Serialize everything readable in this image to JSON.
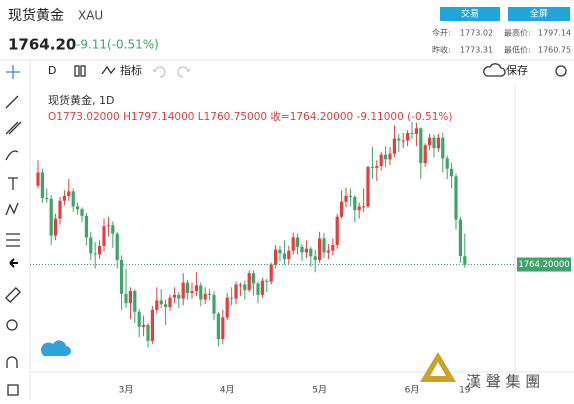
{
  "header": {
    "name": "现货黄金",
    "symbol": "XAU",
    "price": "1764.20",
    "change": "-9.11(-0.51%)",
    "buttons": [
      "交易",
      "全屏"
    ],
    "stats": [
      {
        "label": "今开:",
        "value": "1773.02"
      },
      {
        "label": "最高价:",
        "value": "1797.14"
      },
      {
        "label": "昨收:",
        "value": "1773.31"
      },
      {
        "label": "最低价:",
        "value": "1760.75"
      }
    ]
  },
  "toolbar": {
    "interval": "D",
    "indicators": "指标",
    "save": "保存"
  },
  "chart_data": {
    "type": "candlestick",
    "legend_title": "现货黄金, 1D",
    "legend_values": [
      "O1773.02000",
      "H1797.14000",
      "L1760.75000",
      "收=1764.20000",
      "-9.11000",
      "(-0.51%)"
    ],
    "up_color": "#e0403f",
    "down_color": "#3fa468",
    "ylim": [
      1650,
      1955
    ],
    "last_price": {
      "value": 1764.2,
      "label": "1764.20000"
    },
    "categories": [
      null,
      null,
      null,
      null,
      null,
      null,
      null,
      null,
      null,
      null,
      null,
      null,
      null,
      null,
      null,
      null,
      null,
      null,
      null,
      null,
      "3月",
      null,
      null,
      null,
      null,
      null,
      null,
      null,
      null,
      null,
      null,
      null,
      null,
      null,
      null,
      null,
      null,
      null,
      null,
      null,
      null,
      null,
      null,
      "4月",
      null,
      null,
      null,
      null,
      null,
      null,
      null,
      null,
      null,
      null,
      null,
      null,
      null,
      null,
      null,
      null,
      null,
      null,
      null,
      null,
      "5月",
      null,
      null,
      null,
      null,
      null,
      null,
      null,
      null,
      null,
      null,
      null,
      null,
      null,
      null,
      null,
      null,
      null,
      null,
      null,
      null,
      "6月",
      null,
      null,
      null,
      null,
      null,
      null,
      null,
      null,
      null,
      null,
      null,
      "19"
    ],
    "ohlc": [
      [
        1848,
        1875,
        1845,
        1862
      ],
      [
        1862,
        1866,
        1830,
        1835
      ],
      [
        1835,
        1845,
        1830,
        1834
      ],
      [
        1834,
        1838,
        1785,
        1795
      ],
      [
        1795,
        1818,
        1790,
        1813
      ],
      [
        1813,
        1836,
        1807,
        1832
      ],
      [
        1832,
        1843,
        1827,
        1837
      ],
      [
        1837,
        1855,
        1832,
        1842
      ],
      [
        1842,
        1845,
        1820,
        1826
      ],
      [
        1826,
        1830,
        1817,
        1823
      ],
      [
        1823,
        1825,
        1809,
        1816
      ],
      [
        1816,
        1819,
        1785,
        1793
      ],
      [
        1793,
        1799,
        1769,
        1776
      ],
      [
        1776,
        1788,
        1760,
        1775
      ],
      [
        1775,
        1790,
        1770,
        1784
      ],
      [
        1784,
        1813,
        1778,
        1805
      ],
      [
        1805,
        1815,
        1794,
        1806
      ],
      [
        1806,
        1810,
        1782,
        1797
      ],
      [
        1797,
        1799,
        1760,
        1769
      ],
      [
        1769,
        1774,
        1716,
        1733
      ],
      [
        1733,
        1760,
        1718,
        1723
      ],
      [
        1723,
        1740,
        1706,
        1736
      ],
      [
        1736,
        1738,
        1702,
        1714
      ],
      [
        1714,
        1717,
        1687,
        1698
      ],
      [
        1698,
        1710,
        1688,
        1700
      ],
      [
        1700,
        1702,
        1676,
        1683
      ],
      [
        1683,
        1720,
        1680,
        1716
      ],
      [
        1716,
        1740,
        1712,
        1726
      ],
      [
        1726,
        1738,
        1718,
        1722
      ],
      [
        1722,
        1727,
        1700,
        1719
      ],
      [
        1719,
        1732,
        1715,
        1729
      ],
      [
        1729,
        1740,
        1723,
        1732
      ],
      [
        1732,
        1735,
        1718,
        1728
      ],
      [
        1728,
        1755,
        1721,
        1745
      ],
      [
        1745,
        1748,
        1727,
        1734
      ],
      [
        1734,
        1745,
        1728,
        1736
      ],
      [
        1736,
        1756,
        1731,
        1742
      ],
      [
        1742,
        1745,
        1720,
        1727
      ],
      [
        1727,
        1740,
        1722,
        1733
      ],
      [
        1733,
        1738,
        1726,
        1732
      ],
      [
        1732,
        1736,
        1705,
        1712
      ],
      [
        1712,
        1714,
        1677,
        1685
      ],
      [
        1685,
        1716,
        1680,
        1708
      ],
      [
        1708,
        1734,
        1705,
        1729
      ],
      [
        1729,
        1740,
        1721,
        1728
      ],
      [
        1728,
        1746,
        1722,
        1743
      ],
      [
        1743,
        1745,
        1731,
        1743
      ],
      [
        1743,
        1747,
        1727,
        1737
      ],
      [
        1737,
        1758,
        1735,
        1755
      ],
      [
        1755,
        1758,
        1731,
        1744
      ],
      [
        1744,
        1746,
        1723,
        1732
      ],
      [
        1732,
        1750,
        1729,
        1747
      ],
      [
        1747,
        1749,
        1735,
        1746
      ],
      [
        1746,
        1766,
        1743,
        1764
      ],
      [
        1764,
        1785,
        1760,
        1780
      ],
      [
        1780,
        1784,
        1768,
        1776
      ],
      [
        1776,
        1790,
        1764,
        1770
      ],
      [
        1770,
        1784,
        1764,
        1779
      ],
      [
        1779,
        1798,
        1775,
        1793
      ],
      [
        1793,
        1797,
        1775,
        1783
      ],
      [
        1783,
        1786,
        1768,
        1777
      ],
      [
        1777,
        1790,
        1771,
        1781
      ],
      [
        1781,
        1783,
        1762,
        1773
      ],
      [
        1773,
        1780,
        1756,
        1769
      ],
      [
        1769,
        1799,
        1766,
        1792
      ],
      [
        1792,
        1798,
        1771,
        1777
      ],
      [
        1777,
        1786,
        1770,
        1779
      ],
      [
        1779,
        1792,
        1774,
        1785
      ],
      [
        1785,
        1818,
        1781,
        1815
      ],
      [
        1815,
        1843,
        1813,
        1831
      ],
      [
        1831,
        1846,
        1825,
        1837
      ],
      [
        1837,
        1845,
        1826,
        1836
      ],
      [
        1836,
        1838,
        1809,
        1822
      ],
      [
        1822,
        1830,
        1813,
        1826
      ],
      [
        1826,
        1845,
        1820,
        1826
      ],
      [
        1826,
        1869,
        1824,
        1868
      ],
      [
        1868,
        1889,
        1855,
        1867
      ],
      [
        1867,
        1875,
        1853,
        1869
      ],
      [
        1869,
        1884,
        1864,
        1881
      ],
      [
        1881,
        1890,
        1868,
        1876
      ],
      [
        1876,
        1889,
        1870,
        1882
      ],
      [
        1882,
        1912,
        1878,
        1898
      ],
      [
        1898,
        1903,
        1884,
        1896
      ],
      [
        1896,
        1904,
        1888,
        1896
      ],
      [
        1896,
        1907,
        1890,
        1904
      ],
      [
        1904,
        1916,
        1898,
        1903
      ],
      [
        1903,
        1915,
        1890,
        1909
      ],
      [
        1909,
        1910,
        1855,
        1872
      ],
      [
        1872,
        1893,
        1868,
        1891
      ],
      [
        1891,
        1903,
        1886,
        1899
      ],
      [
        1899,
        1902,
        1878,
        1888
      ],
      [
        1888,
        1903,
        1884,
        1899
      ],
      [
        1899,
        1904,
        1862,
        1877
      ],
      [
        1877,
        1880,
        1855,
        1866
      ],
      [
        1866,
        1872,
        1845,
        1858
      ],
      [
        1858,
        1861,
        1801,
        1812
      ],
      [
        1812,
        1815,
        1766,
        1773.31
      ],
      [
        1773.02,
        1797.14,
        1760.75,
        1764.2
      ]
    ]
  },
  "watermark": "漢 聲 集 團"
}
